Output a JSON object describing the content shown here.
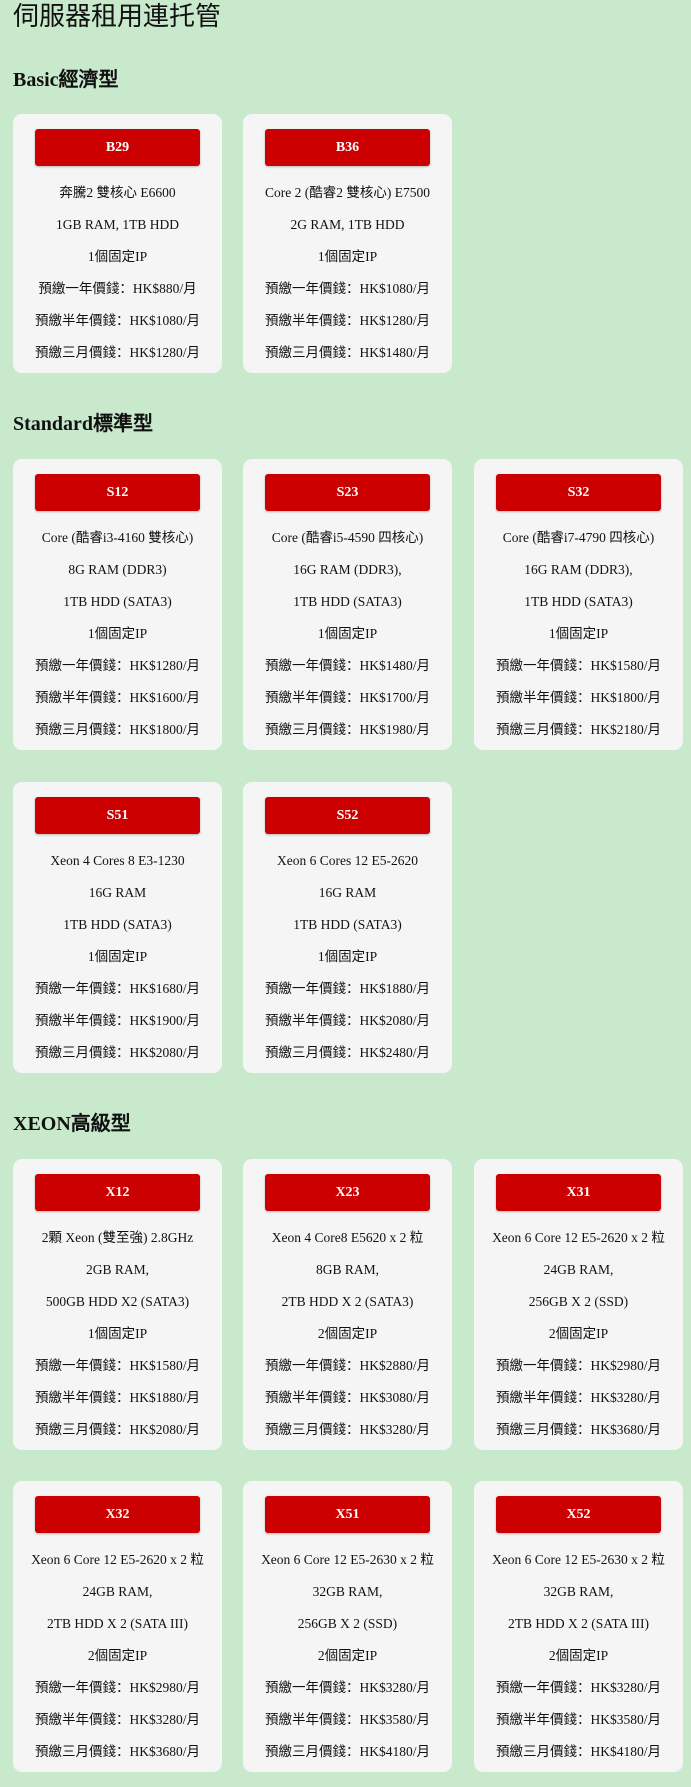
{
  "page_title": "伺服器租用連托管",
  "colors": {
    "background": "#c9e9cd",
    "card": "#f5f5f5",
    "plan_button": "#cc0000"
  },
  "sections": [
    {
      "heading": "Basic經濟型",
      "plans": [
        {
          "code": "B29",
          "lines": [
            "奔騰2 雙核心 E6600",
            "1GB RAM, 1TB HDD",
            "1個固定IP",
            "預繳一年價錢：HK$880/月",
            "預繳半年價錢：HK$1080/月",
            "預繳三月價錢：HK$1280/月"
          ]
        },
        {
          "code": "B36",
          "lines": [
            "Core 2 (酷睿2 雙核心) E7500",
            "2G RAM, 1TB HDD",
            "1個固定IP",
            "預繳一年價錢：HK$1080/月",
            "預繳半年價錢：HK$1280/月",
            "預繳三月價錢：HK$1480/月"
          ]
        }
      ]
    },
    {
      "heading": "Standard標準型",
      "plans": [
        {
          "code": "S12",
          "lines": [
            "Core (酷睿i3-4160 雙核心)",
            "8G RAM (DDR3)",
            "1TB HDD (SATA3)",
            "1個固定IP",
            "預繳一年價錢：HK$1280/月",
            "預繳半年價錢：HK$1600/月",
            "預繳三月價錢：HK$1800/月"
          ]
        },
        {
          "code": "S23",
          "lines": [
            "Core (酷睿i5-4590 四核心)",
            "16G RAM (DDR3),",
            "1TB HDD (SATA3)",
            "1個固定IP",
            "預繳一年價錢：HK$1480/月",
            "預繳半年價錢：HK$1700/月",
            "預繳三月價錢：HK$1980/月"
          ]
        },
        {
          "code": "S32",
          "lines": [
            "Core (酷睿i7-4790 四核心)",
            "16G RAM (DDR3),",
            "1TB HDD (SATA3)",
            "1個固定IP",
            "預繳一年價錢：HK$1580/月",
            "預繳半年價錢：HK$1800/月",
            "預繳三月價錢：HK$2180/月"
          ]
        },
        {
          "code": "S51",
          "lines": [
            "Xeon 4 Cores 8 E3-1230",
            "16G RAM",
            "1TB HDD (SATA3)",
            "1個固定IP",
            "預繳一年價錢：HK$1680/月",
            "預繳半年價錢：HK$1900/月",
            "預繳三月價錢：HK$2080/月"
          ]
        },
        {
          "code": "S52",
          "lines": [
            "Xeon 6 Cores 12 E5-2620",
            "16G RAM",
            "1TB HDD (SATA3)",
            "1個固定IP",
            "預繳一年價錢：HK$1880/月",
            "預繳半年價錢：HK$2080/月",
            "預繳三月價錢：HK$2480/月"
          ]
        }
      ]
    },
    {
      "heading": "XEON高級型",
      "plans": [
        {
          "code": "X12",
          "lines": [
            "2顆 Xeon (雙至強) 2.8GHz",
            "2GB RAM,",
            "500GB HDD X2 (SATA3)",
            "1個固定IP",
            "預繳一年價錢：HK$1580/月",
            "預繳半年價錢：HK$1880/月",
            "預繳三月價錢：HK$2080/月"
          ]
        },
        {
          "code": "X23",
          "lines": [
            "Xeon 4 Core8 E5620 x 2 粒",
            "8GB RAM,",
            "2TB HDD X 2 (SATA3)",
            "2個固定IP",
            "預繳一年價錢：HK$2880/月",
            "預繳半年價錢：HK$3080/月",
            "預繳三月價錢：HK$3280/月"
          ]
        },
        {
          "code": "X31",
          "lines": [
            "Xeon 6 Core 12 E5-2620 x 2 粒",
            "24GB RAM,",
            "256GB X 2 (SSD)",
            "2個固定IP",
            "預繳一年價錢：HK$2980/月",
            "預繳半年價錢：HK$3280/月",
            "預繳三月價錢：HK$3680/月"
          ]
        },
        {
          "code": "X32",
          "lines": [
            "Xeon 6 Core 12 E5-2620 x 2 粒",
            "24GB RAM,",
            "2TB HDD X 2 (SATA III)",
            "2個固定IP",
            "預繳一年價錢：HK$2980/月",
            "預繳半年價錢：HK$3280/月",
            "預繳三月價錢：HK$3680/月"
          ]
        },
        {
          "code": "X51",
          "lines": [
            "Xeon 6 Core 12 E5-2630 x 2 粒",
            "32GB RAM,",
            "256GB X 2 (SSD)",
            "2個固定IP",
            "預繳一年價錢：HK$3280/月",
            "預繳半年價錢：HK$3580/月",
            "預繳三月價錢：HK$4180/月"
          ]
        },
        {
          "code": "X52",
          "lines": [
            "Xeon 6 Core 12 E5-2630 x 2 粒",
            "32GB RAM,",
            "2TB HDD X 2 (SATA III)",
            "2個固定IP",
            "預繳一年價錢：HK$3280/月",
            "預繳半年價錢：HK$3580/月",
            "預繳三月價錢：HK$4180/月"
          ]
        }
      ]
    }
  ]
}
